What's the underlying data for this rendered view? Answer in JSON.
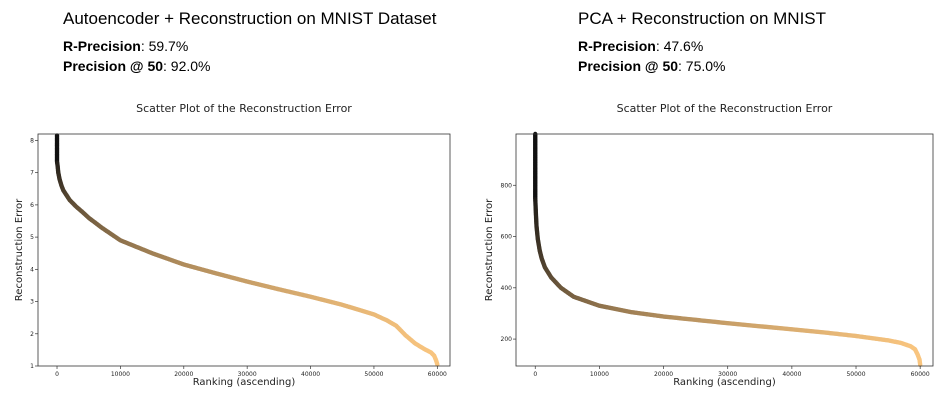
{
  "panels": [
    {
      "heading": "Autoencoder + Reconstruction on MNIST Dataset",
      "metrics": [
        {
          "label": "R-Precision",
          "value": ": 59.7%"
        },
        {
          "label": "Precision @ 50",
          "value": ": 92.0%"
        }
      ]
    },
    {
      "heading": "PCA + Reconstruction on MNIST",
      "metrics": [
        {
          "label": "R-Precision",
          "value": ": 47.6%"
        },
        {
          "label": "Precision @ 50",
          "value": ": 75.0%"
        }
      ]
    }
  ],
  "colors": {
    "dark": "#111111",
    "light": "#f9c57f"
  },
  "chart_data": [
    {
      "type": "scatter",
      "title": "Scatter Plot of the Reconstruction Error",
      "xlabel": "Ranking (ascending)",
      "ylabel": "Reconstruction Error",
      "xlim": [
        -3000,
        62000
      ],
      "ylim": [
        1,
        8.2
      ],
      "xticks": [
        0,
        10000,
        20000,
        30000,
        40000,
        50000,
        60000
      ],
      "yticks": [
        1,
        2,
        3,
        4,
        5,
        6,
        7,
        8
      ],
      "grid": false,
      "points": [
        [
          0,
          8.15
        ],
        [
          0,
          7.95
        ],
        [
          0,
          7.65
        ],
        [
          0,
          7.5
        ],
        [
          0,
          7.35
        ],
        [
          100,
          7.2
        ],
        [
          200,
          7.0
        ],
        [
          400,
          6.8
        ],
        [
          700,
          6.6
        ],
        [
          1000,
          6.45
        ],
        [
          1500,
          6.3
        ],
        [
          2000,
          6.15
        ],
        [
          3000,
          5.95
        ],
        [
          4000,
          5.78
        ],
        [
          5000,
          5.6
        ],
        [
          7000,
          5.3
        ],
        [
          10000,
          4.9
        ],
        [
          15000,
          4.5
        ],
        [
          20000,
          4.15
        ],
        [
          25000,
          3.88
        ],
        [
          30000,
          3.62
        ],
        [
          35000,
          3.38
        ],
        [
          40000,
          3.15
        ],
        [
          45000,
          2.9
        ],
        [
          50000,
          2.6
        ],
        [
          52000,
          2.42
        ],
        [
          53500,
          2.25
        ],
        [
          55000,
          1.95
        ],
        [
          56500,
          1.7
        ],
        [
          58000,
          1.52
        ],
        [
          59000,
          1.42
        ],
        [
          59500,
          1.32
        ],
        [
          59800,
          1.18
        ],
        [
          60000,
          1.05
        ]
      ]
    },
    {
      "type": "scatter",
      "title": "Scatter Plot of the Reconstruction Error",
      "xlabel": "Ranking (ascending)",
      "ylabel": "Reconstruction Error",
      "xlim": [
        -3000,
        62000
      ],
      "ylim": [
        95,
        1000
      ],
      "xticks": [
        0,
        10000,
        20000,
        30000,
        40000,
        50000,
        60000
      ],
      "yticks": [
        200,
        400,
        600,
        800
      ],
      "grid": false,
      "points": [
        [
          0,
          1000
        ],
        [
          0,
          865
        ],
        [
          0,
          845
        ],
        [
          0,
          830
        ],
        [
          0,
          815
        ],
        [
          0,
          800
        ],
        [
          0,
          780
        ],
        [
          0,
          750
        ],
        [
          50,
          720
        ],
        [
          100,
          690
        ],
        [
          200,
          640
        ],
        [
          400,
          590
        ],
        [
          700,
          545
        ],
        [
          1000,
          515
        ],
        [
          1500,
          480
        ],
        [
          2500,
          440
        ],
        [
          4000,
          400
        ],
        [
          6000,
          365
        ],
        [
          10000,
          330
        ],
        [
          15000,
          305
        ],
        [
          20000,
          288
        ],
        [
          25000,
          275
        ],
        [
          30000,
          262
        ],
        [
          35000,
          250
        ],
        [
          40000,
          238
        ],
        [
          45000,
          226
        ],
        [
          50000,
          212
        ],
        [
          55000,
          195
        ],
        [
          57000,
          185
        ],
        [
          58500,
          172
        ],
        [
          59200,
          160
        ],
        [
          59600,
          140
        ],
        [
          59900,
          120
        ],
        [
          60000,
          100
        ]
      ]
    }
  ]
}
